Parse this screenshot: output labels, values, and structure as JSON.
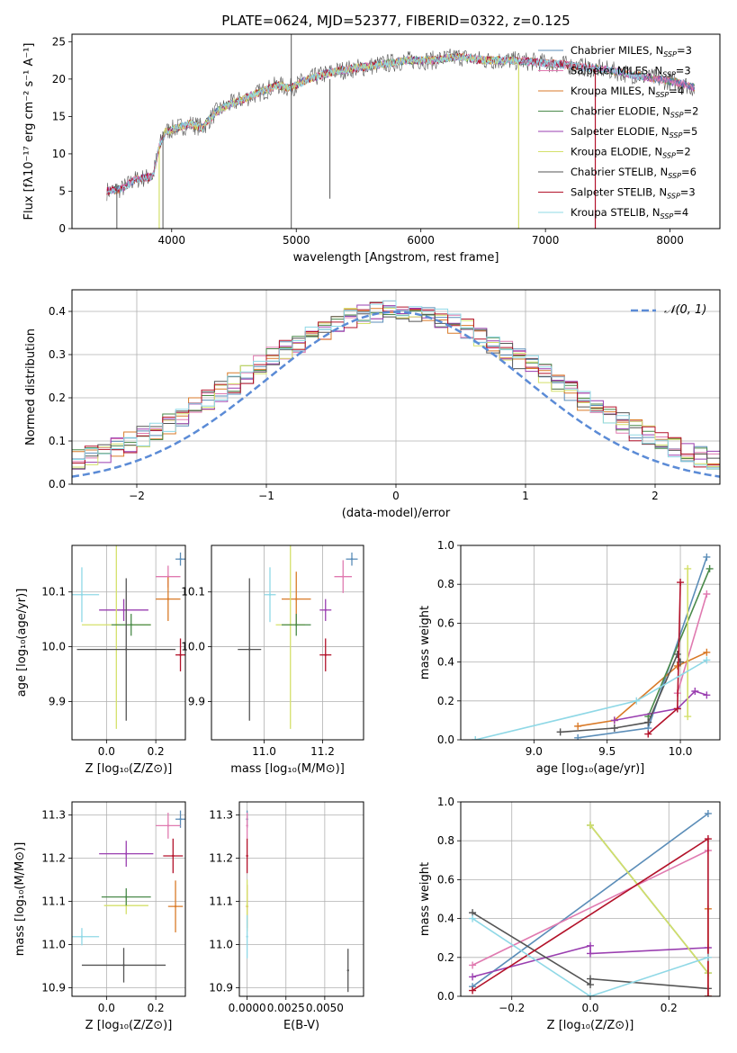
{
  "figure_title": "PLATE=0624, MJD=52377, FIBERID=0322, z=0.125",
  "colors": {
    "chabrier_miles": "#5b8db8",
    "salpeter_miles": "#e07ab0",
    "kroupa_miles": "#d97a28",
    "chabrier_elodie": "#4a8a4a",
    "salpeter_elodie": "#9a3fb0",
    "kroupa_elodie": "#d4e06a",
    "chabrier_stelib": "#555555",
    "salpeter_stelib": "#b3122a",
    "kroupa_stelib": "#8fd8e6",
    "normal_curve": "#5b8bd6"
  },
  "chart_data": [
    {
      "id": "spectrum",
      "type": "line",
      "title": "PLATE=0624, MJD=52377, FIBERID=0322, z=0.125",
      "xlabel": "wavelength [Angstrom, rest frame]",
      "ylabel": "Flux [fλ10⁻¹⁷ erg cm⁻² s⁻¹ A⁻¹]",
      "xlim": [
        3200,
        8400
      ],
      "ylim": [
        0,
        26
      ],
      "xticks": [
        4000,
        5000,
        6000,
        7000,
        8000
      ],
      "yticks": [
        0,
        5,
        10,
        15,
        20,
        25
      ],
      "legend_position": "top-right",
      "legend": [
        {
          "label": "Chabrier MILES, N_SSP=3",
          "color_key": "chabrier_miles"
        },
        {
          "label": "Salpeter MILES, N_SSP=3",
          "color_key": "salpeter_miles"
        },
        {
          "label": "Kroupa MILES, N_SSP=4",
          "color_key": "kroupa_miles"
        },
        {
          "label": "Chabrier ELODIE, N_SSP=2",
          "color_key": "chabrier_elodie"
        },
        {
          "label": "Salpeter ELODIE, N_SSP=5",
          "color_key": "salpeter_elodie"
        },
        {
          "label": "Kroupa ELODIE, N_SSP=2",
          "color_key": "kroupa_elodie"
        },
        {
          "label": "Chabrier STELIB, N_SSP=6",
          "color_key": "chabrier_stelib"
        },
        {
          "label": "Salpeter STELIB, N_SSP=3",
          "color_key": "salpeter_stelib"
        },
        {
          "label": "Kroupa STELIB, N_SSP=4",
          "color_key": "kroupa_stelib"
        }
      ],
      "continuum": [
        [
          3480,
          5.0
        ],
        [
          3600,
          5.3
        ],
        [
          3700,
          6.5
        ],
        [
          3850,
          7.0
        ],
        [
          3900,
          11.0
        ],
        [
          3950,
          13.0
        ],
        [
          4050,
          13.5
        ],
        [
          4150,
          14.0
        ],
        [
          4250,
          13.5
        ],
        [
          4350,
          15.5
        ],
        [
          4450,
          16.5
        ],
        [
          4600,
          17.5
        ],
        [
          4750,
          18.5
        ],
        [
          4850,
          19.2
        ],
        [
          4950,
          18.8
        ],
        [
          5100,
          20.0
        ],
        [
          5200,
          20.5
        ],
        [
          5300,
          21.0
        ],
        [
          5500,
          21.5
        ],
        [
          5700,
          22.0
        ],
        [
          5900,
          22.5
        ],
        [
          6100,
          22.5
        ],
        [
          6300,
          23.0
        ],
        [
          6500,
          22.5
        ],
        [
          6700,
          22.5
        ],
        [
          6900,
          22.3
        ],
        [
          7100,
          22.0
        ],
        [
          7300,
          21.6
        ],
        [
          7500,
          21.2
        ],
        [
          7700,
          20.6
        ],
        [
          7900,
          20.0
        ],
        [
          8100,
          19.4
        ],
        [
          8200,
          18.8
        ]
      ],
      "spikes": [
        {
          "x": 4960,
          "y0": 0,
          "y1": 26
        },
        {
          "x": 5270,
          "y0": 4,
          "y1": 20
        },
        {
          "x": 3560,
          "y0": 0,
          "y1": 6
        },
        {
          "x": 3930,
          "y0": 0,
          "y1": 13
        }
      ],
      "kroupa_elodie_cut": 6785,
      "salpeter_stelib_cut": 7400
    },
    {
      "id": "residuals",
      "type": "histogram",
      "xlabel": "(data-model)/error",
      "ylabel": "Normed distribution",
      "xlim": [
        -2.5,
        2.5
      ],
      "ylim": [
        0,
        0.45
      ],
      "xticks": [
        -2,
        -1,
        0,
        1,
        2
      ],
      "yticks": [
        0.0,
        0.1,
        0.2,
        0.3,
        0.4
      ],
      "legend": [
        {
          "label": "𝒩(0, 1)",
          "style": "dashed",
          "color_key": "normal_curve"
        }
      ],
      "legend_position": "top-right",
      "normal_mean": 0,
      "normal_sigma": 1
    },
    {
      "id": "age_vs_Z",
      "type": "scatter",
      "xlabel": "Z [log₁₀(Z/Z⊙)]",
      "ylabel": "age  [log₁₀(age/yr)]",
      "xlim": [
        -0.14,
        0.32
      ],
      "ylim": [
        9.83,
        10.185
      ],
      "xticks": [
        0.0,
        0.2
      ],
      "yticks": [
        9.9,
        10.0,
        10.1
      ],
      "points": [
        {
          "color_key": "chabrier_miles",
          "x": 0.3,
          "xerr": 0.02,
          "y": 10.16,
          "yerr": 0.012
        },
        {
          "color_key": "salpeter_miles",
          "x": 0.25,
          "xerr": 0.05,
          "y": 10.128,
          "yerr": 0.02
        },
        {
          "color_key": "kroupa_miles",
          "x": 0.25,
          "xerr": 0.05,
          "y": 10.087,
          "yerr": 0.04
        },
        {
          "color_key": "salpeter_elodie",
          "x": 0.07,
          "xerr": 0.1,
          "y": 10.067,
          "yerr": 0.02
        },
        {
          "color_key": "kroupa_elodie",
          "x": 0.04,
          "xerr": 0.14,
          "y": 10.04,
          "yerr": 0.19
        },
        {
          "color_key": "chabrier_elodie",
          "x": 0.1,
          "xerr": 0.08,
          "y": 10.04,
          "yerr": 0.02
        },
        {
          "color_key": "chabrier_stelib",
          "x": 0.08,
          "xerr": 0.2,
          "y": 9.995,
          "yerr": 0.13
        },
        {
          "color_key": "salpeter_stelib",
          "x": 0.3,
          "xerr": 0.02,
          "y": 9.985,
          "yerr": 0.03
        },
        {
          "color_key": "kroupa_stelib",
          "x": -0.1,
          "xerr": 0.07,
          "y": 10.095,
          "yerr": 0.05
        }
      ]
    },
    {
      "id": "age_vs_mass",
      "type": "scatter",
      "xlabel": "mass [log₁₀(M/M⊙)]",
      "ylabel": "",
      "xlim": [
        10.82,
        11.34
      ],
      "ylim": [
        9.83,
        10.185
      ],
      "xticks": [
        11.0,
        11.2
      ],
      "yticks": [
        9.9,
        10.0,
        10.1
      ],
      "points": [
        {
          "color_key": "chabrier_miles",
          "x": 11.3,
          "xerr": 0.02,
          "y": 10.16,
          "yerr": 0.012
        },
        {
          "color_key": "salpeter_miles",
          "x": 11.27,
          "xerr": 0.03,
          "y": 10.128,
          "yerr": 0.03
        },
        {
          "color_key": "kroupa_miles",
          "x": 11.11,
          "xerr": 0.05,
          "y": 10.087,
          "yerr": 0.05
        },
        {
          "color_key": "salpeter_elodie",
          "x": 11.21,
          "xerr": 0.02,
          "y": 10.067,
          "yerr": 0.02
        },
        {
          "color_key": "kroupa_elodie",
          "x": 11.09,
          "xerr": 0.05,
          "y": 10.04,
          "yerr": 0.19
        },
        {
          "color_key": "chabrier_elodie",
          "x": 11.11,
          "xerr": 0.05,
          "y": 10.04,
          "yerr": 0.02
        },
        {
          "color_key": "chabrier_stelib",
          "x": 10.95,
          "xerr": 0.04,
          "y": 9.995,
          "yerr": 0.13
        },
        {
          "color_key": "salpeter_stelib",
          "x": 11.21,
          "xerr": 0.02,
          "y": 9.985,
          "yerr": 0.03
        },
        {
          "color_key": "kroupa_stelib",
          "x": 11.02,
          "xerr": 0.02,
          "y": 10.095,
          "yerr": 0.05
        }
      ]
    },
    {
      "id": "massweight_vs_age",
      "type": "line",
      "xlabel": "age  [log₁₀(age/yr)]",
      "ylabel": "mass weight",
      "xlim": [
        8.5,
        10.27
      ],
      "ylim": [
        0,
        1.0
      ],
      "xticks": [
        9.0,
        9.5,
        10.0
      ],
      "yticks": [
        0.0,
        0.2,
        0.4,
        0.6,
        0.8,
        1.0
      ],
      "series": [
        {
          "color_key": "chabrier_miles",
          "x": [
            9.3,
            9.78,
            10.18
          ],
          "y": [
            0.01,
            0.06,
            0.94
          ]
        },
        {
          "color_key": "salpeter_miles",
          "x": [
            9.98,
            10.18
          ],
          "y": [
            0.24,
            0.75
          ]
        },
        {
          "color_key": "kroupa_miles",
          "x": [
            9.3,
            9.55,
            9.98,
            10.18
          ],
          "y": [
            0.07,
            0.1,
            0.38,
            0.45
          ]
        },
        {
          "color_key": "chabrier_elodie",
          "x": [
            9.78,
            10.2
          ],
          "y": [
            0.12,
            0.88
          ]
        },
        {
          "color_key": "salpeter_elodie",
          "x": [
            9.55,
            9.98,
            10.1,
            10.18
          ],
          "y": [
            0.1,
            0.16,
            0.25,
            0.23
          ]
        },
        {
          "color_key": "kroupa_elodie",
          "x": [
            10.05,
            10.05
          ],
          "y": [
            0.12,
            0.88
          ]
        },
        {
          "color_key": "chabrier_stelib",
          "x": [
            9.18,
            9.55,
            9.78,
            9.98,
            10.0
          ],
          "y": [
            0.04,
            0.06,
            0.09,
            0.44,
            0.4
          ]
        },
        {
          "color_key": "salpeter_stelib",
          "x": [
            9.78,
            9.98,
            10.0
          ],
          "y": [
            0.03,
            0.16,
            0.81
          ]
        },
        {
          "color_key": "kroupa_stelib",
          "x": [
            8.6,
            9.7,
            10.18
          ],
          "y": [
            0.0,
            0.2,
            0.41
          ]
        }
      ]
    },
    {
      "id": "mass_vs_Z",
      "type": "scatter",
      "xlabel": "Z [log₁₀(Z/Z⊙)]",
      "ylabel": "mass [log₁₀(M/M⊙)]",
      "xlim": [
        -0.14,
        0.32
      ],
      "ylim": [
        10.88,
        11.33
      ],
      "xticks": [
        0.0,
        0.2
      ],
      "yticks": [
        10.9,
        11.0,
        11.1,
        11.2,
        11.3
      ],
      "points": [
        {
          "color_key": "chabrier_miles",
          "x": 0.3,
          "xerr": 0.02,
          "y": 11.29,
          "yerr": 0.02
        },
        {
          "color_key": "salpeter_miles",
          "x": 0.25,
          "xerr": 0.05,
          "y": 11.275,
          "yerr": 0.03
        },
        {
          "color_key": "kroupa_miles",
          "x": 0.28,
          "xerr": 0.03,
          "y": 11.088,
          "yerr": 0.06
        },
        {
          "color_key": "salpeter_elodie",
          "x": 0.08,
          "xerr": 0.11,
          "y": 11.21,
          "yerr": 0.03
        },
        {
          "color_key": "kroupa_elodie",
          "x": 0.08,
          "xerr": 0.09,
          "y": 11.09,
          "yerr": 0.02
        },
        {
          "color_key": "chabrier_elodie",
          "x": 0.08,
          "xerr": 0.1,
          "y": 11.11,
          "yerr": 0.02
        },
        {
          "color_key": "chabrier_stelib",
          "x": 0.07,
          "xerr": 0.17,
          "y": 10.952,
          "yerr": 0.04
        },
        {
          "color_key": "salpeter_stelib",
          "x": 0.27,
          "xerr": 0.04,
          "y": 11.205,
          "yerr": 0.04
        },
        {
          "color_key": "kroupa_stelib",
          "x": -0.1,
          "xerr": 0.07,
          "y": 11.018,
          "yerr": 0.02
        }
      ]
    },
    {
      "id": "mass_vs_EBV",
      "type": "scatter",
      "xlabel": "E(B-V)",
      "ylabel": "",
      "xlim": [
        -0.0005,
        0.0075
      ],
      "ylim": [
        10.88,
        11.33
      ],
      "xticks": [
        0.0,
        0.0025,
        0.005
      ],
      "xticklabels": [
        "0.0000",
        "0.0025",
        "0.0050"
      ],
      "yticks": [
        10.9,
        11.0,
        11.1,
        11.2,
        11.3
      ],
      "points": [
        {
          "color_key": "chabrier_miles",
          "x": 0.0,
          "y": 11.29,
          "yerr": 0.02
        },
        {
          "color_key": "salpeter_miles",
          "x": 0.0,
          "y": 11.275,
          "yerr": 0.03
        },
        {
          "color_key": "salpeter_stelib",
          "x": 0.0,
          "y": 11.205,
          "yerr": 0.04
        },
        {
          "color_key": "kroupa_miles",
          "x": 0.0,
          "y": 11.088,
          "yerr": 0.05
        },
        {
          "color_key": "kroupa_elodie",
          "x": 0.0,
          "y": 11.09,
          "yerr": 0.06
        },
        {
          "color_key": "kroupa_stelib",
          "x": 0.0,
          "y": 11.018,
          "yerr": 0.05
        },
        {
          "color_key": "chabrier_stelib",
          "x": 0.0065,
          "y": 10.94,
          "yerr": 0.05
        }
      ]
    },
    {
      "id": "massweight_vs_Z",
      "type": "line",
      "xlabel": "Z [log₁₀(Z/Z⊙)]",
      "ylabel": "mass weight",
      "xlim": [
        -0.33,
        0.33
      ],
      "ylim": [
        0,
        1.0
      ],
      "xticks": [
        -0.2,
        0.0,
        0.2
      ],
      "yticks": [
        0.0,
        0.2,
        0.4,
        0.6,
        0.8,
        1.0
      ],
      "series": [
        {
          "color_key": "chabrier_miles",
          "x": [
            -0.3,
            0.3
          ],
          "y": [
            0.05,
            0.94
          ]
        },
        {
          "color_key": "salpeter_miles",
          "x": [
            -0.3,
            0.3
          ],
          "y": [
            0.16,
            0.75
          ]
        },
        {
          "color_key": "kroupa_miles",
          "x": [
            0.3,
            0.3
          ],
          "y": [
            0.0,
            0.45
          ]
        },
        {
          "color_key": "chabrier_elodie",
          "x": [
            0.0,
            0.3
          ],
          "y": [
            0.88,
            0.12
          ]
        },
        {
          "color_key": "salpeter_elodie",
          "x": [
            -0.3,
            0.0,
            0.0,
            0.3
          ],
          "y": [
            0.1,
            0.26,
            0.22,
            0.25
          ]
        },
        {
          "color_key": "kroupa_elodie",
          "x": [
            0.0,
            0.3
          ],
          "y": [
            0.88,
            0.12
          ]
        },
        {
          "color_key": "chabrier_stelib",
          "x": [
            -0.3,
            0.0,
            0.0,
            0.3
          ],
          "y": [
            0.43,
            0.06,
            0.09,
            0.04
          ]
        },
        {
          "color_key": "salpeter_stelib",
          "x": [
            -0.3,
            0.3,
            0.3
          ],
          "y": [
            0.03,
            0.81,
            0.0
          ]
        },
        {
          "color_key": "kroupa_stelib",
          "x": [
            -0.3,
            0.0,
            0.3
          ],
          "y": [
            0.4,
            0.0,
            0.2
          ]
        }
      ]
    }
  ]
}
